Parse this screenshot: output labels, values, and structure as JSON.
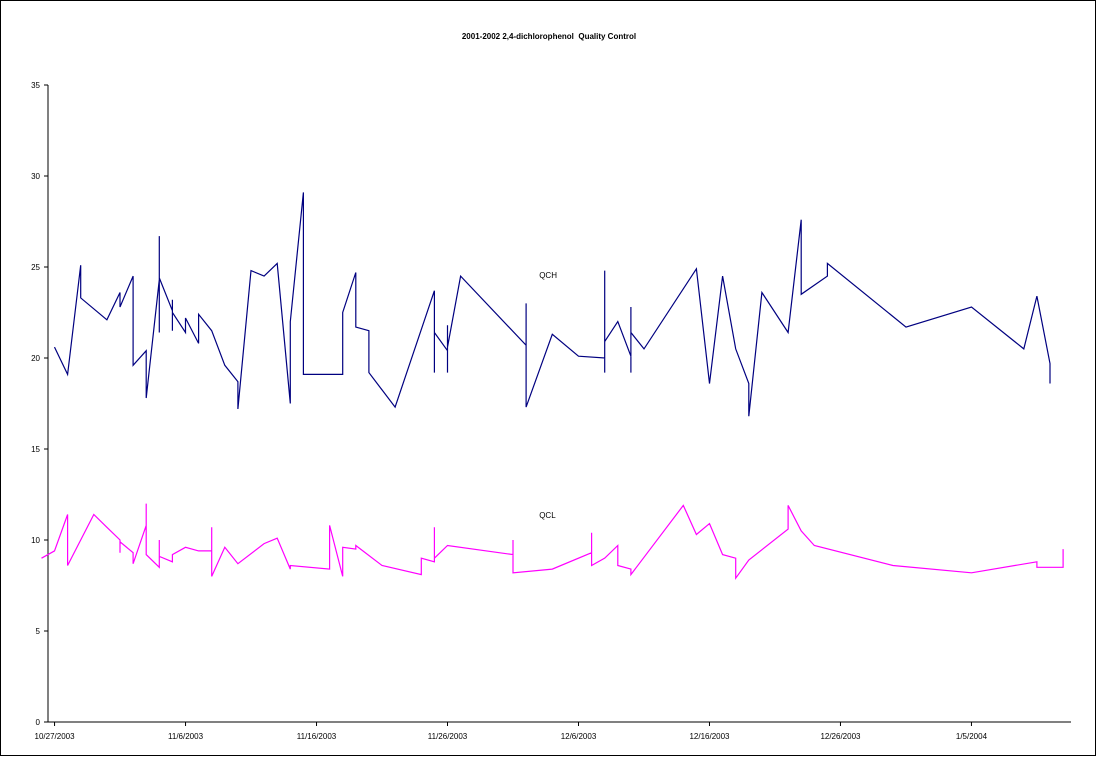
{
  "chart_data": {
    "type": "line",
    "title": "2001-2002 2,4-dichlorophenol  Quality Control",
    "xlabel": "",
    "ylabel": "",
    "ylim": [
      0,
      35
    ],
    "yticks": [
      0,
      5,
      10,
      15,
      20,
      25,
      30,
      35
    ],
    "xlim": [
      "2003-10-27",
      "2004-01-12"
    ],
    "xticks": [
      "10/27/2003",
      "11/6/2003",
      "11/16/2003",
      "11/26/2003",
      "12/6/2003",
      "12/16/2003",
      "12/26/2003",
      "1/5/2004"
    ],
    "grid": false,
    "legend": "none",
    "series": [
      {
        "name": "QCH",
        "color": "#000080",
        "points": [
          [
            "2003-10-27",
            20.6
          ],
          [
            "2003-10-28",
            19.1
          ],
          [
            "2003-10-29",
            25.1
          ],
          [
            "2003-10-29",
            23.3
          ],
          [
            "2003-10-31",
            22.1
          ],
          [
            "2003-11-01",
            23.6
          ],
          [
            "2003-11-01",
            22.8
          ],
          [
            "2003-11-02",
            24.5
          ],
          [
            "2003-11-02",
            19.6
          ],
          [
            "2003-11-03",
            20.4
          ],
          [
            "2003-11-03",
            17.8
          ],
          [
            "2003-11-04",
            24.3
          ],
          [
            "2003-11-04",
            26.7
          ],
          [
            "2003-11-04",
            21.4
          ],
          [
            "2003-11-04",
            24.4
          ],
          [
            "2003-11-05",
            22.6
          ],
          [
            "2003-11-05",
            21.5
          ],
          [
            "2003-11-05",
            23.2
          ],
          [
            "2003-11-05",
            22.5
          ],
          [
            "2003-11-06",
            21.4
          ],
          [
            "2003-11-06",
            22.2
          ],
          [
            "2003-11-07",
            20.8
          ],
          [
            "2003-11-07",
            22.4
          ],
          [
            "2003-11-08",
            21.5
          ],
          [
            "2003-11-09",
            19.6
          ],
          [
            "2003-11-10",
            18.7
          ],
          [
            "2003-11-10",
            17.2
          ],
          [
            "2003-11-11",
            24.8
          ],
          [
            "2003-11-12",
            24.5
          ],
          [
            "2003-11-13",
            25.2
          ],
          [
            "2003-11-14",
            17.5
          ],
          [
            "2003-11-14",
            22.0
          ],
          [
            "2003-11-15",
            29.1
          ],
          [
            "2003-11-15",
            19.1
          ],
          [
            "2003-11-18",
            19.1
          ],
          [
            "2003-11-18",
            22.5
          ],
          [
            "2003-11-19",
            24.7
          ],
          [
            "2003-11-19",
            21.7
          ],
          [
            "2003-11-20",
            21.5
          ],
          [
            "2003-11-20",
            19.2
          ],
          [
            "2003-11-22",
            17.3
          ],
          [
            "2003-11-25",
            23.7
          ],
          [
            "2003-11-25",
            19.2
          ],
          [
            "2003-11-25",
            21.4
          ],
          [
            "2003-11-26",
            20.4
          ],
          [
            "2003-11-26",
            19.2
          ],
          [
            "2003-11-26",
            21.8
          ],
          [
            "2003-11-26",
            20.6
          ],
          [
            "2003-11-27",
            24.5
          ],
          [
            "2003-12-02",
            20.7
          ],
          [
            "2003-12-02",
            23.0
          ],
          [
            "2003-12-02",
            17.3
          ],
          [
            "2003-12-03",
            19.3
          ],
          [
            "2003-12-04",
            21.3
          ],
          [
            "2003-12-06",
            20.1
          ],
          [
            "2003-12-08",
            20.0
          ],
          [
            "2003-12-08",
            24.8
          ],
          [
            "2003-12-08",
            19.2
          ],
          [
            "2003-12-08",
            20.9
          ],
          [
            "2003-12-09",
            22.0
          ],
          [
            "2003-12-10",
            20.1
          ],
          [
            "2003-12-10",
            22.8
          ],
          [
            "2003-12-10",
            19.2
          ],
          [
            "2003-12-10",
            21.4
          ],
          [
            "2003-12-11",
            20.5
          ],
          [
            "2003-12-15",
            24.9
          ],
          [
            "2003-12-16",
            18.6
          ],
          [
            "2003-12-17",
            24.5
          ],
          [
            "2003-12-18",
            20.5
          ],
          [
            "2003-12-19",
            18.6
          ],
          [
            "2003-12-19",
            16.8
          ],
          [
            "2003-12-20",
            23.6
          ],
          [
            "2003-12-22",
            21.4
          ],
          [
            "2003-12-23",
            27.6
          ],
          [
            "2003-12-23",
            23.5
          ],
          [
            "2003-12-25",
            24.5
          ],
          [
            "2003-12-25",
            25.2
          ],
          [
            "2003-12-31",
            21.7
          ],
          [
            "2004-01-05",
            22.8
          ],
          [
            "2004-01-09",
            20.5
          ],
          [
            "2004-01-10",
            23.4
          ],
          [
            "2004-01-11",
            19.7
          ],
          [
            "2004-01-11",
            18.6
          ]
        ]
      },
      {
        "name": "QCL",
        "color": "#ff00ff",
        "points": [
          [
            "2003-10-26",
            9.0
          ],
          [
            "2003-10-27",
            9.4
          ],
          [
            "2003-10-28",
            11.4
          ],
          [
            "2003-10-28",
            8.6
          ],
          [
            "2003-10-30",
            11.4
          ],
          [
            "2003-10-31",
            10.7
          ],
          [
            "2003-11-01",
            10.0
          ],
          [
            "2003-11-01",
            9.3
          ],
          [
            "2003-11-01",
            9.9
          ],
          [
            "2003-11-02",
            9.3
          ],
          [
            "2003-11-02",
            8.7
          ],
          [
            "2003-11-03",
            10.8
          ],
          [
            "2003-11-03",
            12.0
          ],
          [
            "2003-11-03",
            9.2
          ],
          [
            "2003-11-04",
            8.5
          ],
          [
            "2003-11-04",
            10.0
          ],
          [
            "2003-11-04",
            9.1
          ],
          [
            "2003-11-05",
            8.8
          ],
          [
            "2003-11-05",
            9.2
          ],
          [
            "2003-11-06",
            9.6
          ],
          [
            "2003-11-07",
            9.4
          ],
          [
            "2003-11-08",
            9.4
          ],
          [
            "2003-11-08",
            10.7
          ],
          [
            "2003-11-08",
            8.0
          ],
          [
            "2003-11-09",
            9.6
          ],
          [
            "2003-11-10",
            8.7
          ],
          [
            "2003-11-12",
            9.8
          ],
          [
            "2003-11-13",
            10.1
          ],
          [
            "2003-11-14",
            8.4
          ],
          [
            "2003-11-14",
            8.6
          ],
          [
            "2003-11-17",
            8.4
          ],
          [
            "2003-11-17",
            10.8
          ],
          [
            "2003-11-18",
            8.0
          ],
          [
            "2003-11-18",
            9.6
          ],
          [
            "2003-11-19",
            9.5
          ],
          [
            "2003-11-19",
            9.7
          ],
          [
            "2003-11-21",
            8.6
          ],
          [
            "2003-11-24",
            8.1
          ],
          [
            "2003-11-24",
            9.0
          ],
          [
            "2003-11-25",
            8.8
          ],
          [
            "2003-11-25",
            10.7
          ],
          [
            "2003-11-25",
            9.0
          ],
          [
            "2003-11-26",
            9.7
          ],
          [
            "2003-12-01",
            9.2
          ],
          [
            "2003-12-01",
            10.0
          ],
          [
            "2003-12-01",
            8.2
          ],
          [
            "2003-12-04",
            8.4
          ],
          [
            "2003-12-07",
            9.3
          ],
          [
            "2003-12-07",
            10.4
          ],
          [
            "2003-12-07",
            8.6
          ],
          [
            "2003-12-08",
            9.0
          ],
          [
            "2003-12-09",
            9.7
          ],
          [
            "2003-12-09",
            8.6
          ],
          [
            "2003-12-10",
            8.4
          ],
          [
            "2003-12-10",
            8.1
          ],
          [
            "2003-12-14",
            11.9
          ],
          [
            "2003-12-15",
            10.3
          ],
          [
            "2003-12-16",
            10.9
          ],
          [
            "2003-12-17",
            9.2
          ],
          [
            "2003-12-18",
            9.0
          ],
          [
            "2003-12-18",
            7.9
          ],
          [
            "2003-12-19",
            8.9
          ],
          [
            "2003-12-22",
            10.6
          ],
          [
            "2003-12-22",
            11.9
          ],
          [
            "2003-12-23",
            10.5
          ],
          [
            "2003-12-24",
            9.7
          ],
          [
            "2003-12-30",
            8.6
          ],
          [
            "2004-01-05",
            8.2
          ],
          [
            "2004-01-10",
            8.8
          ],
          [
            "2004-01-10",
            8.5
          ],
          [
            "2004-01-12",
            8.5
          ],
          [
            "2004-01-12",
            9.5
          ]
        ]
      }
    ],
    "annotations": [
      {
        "text": "QCH",
        "x": "2003-12-03",
        "y": 24.4
      },
      {
        "text": "QCL",
        "x": "2003-12-03",
        "y": 11.2
      }
    ]
  }
}
